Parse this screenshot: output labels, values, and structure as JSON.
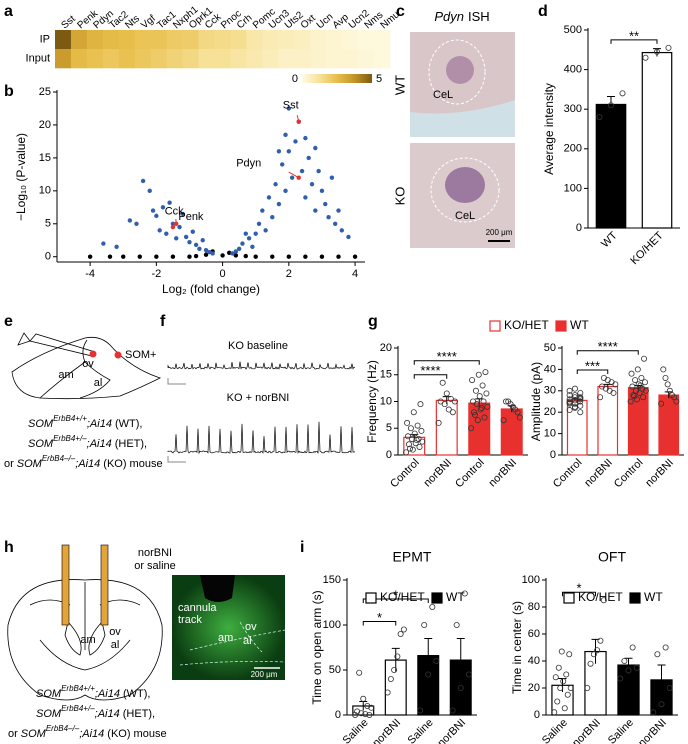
{
  "panel_labels": [
    "a",
    "b",
    "c",
    "d",
    "e",
    "f",
    "g",
    "h",
    "i"
  ],
  "chart_data": [
    {
      "type": "heatmap",
      "rows": [
        "IP",
        "Input"
      ],
      "columns": [
        "Sst",
        "Penk",
        "Pdyn",
        "Tac2",
        "Nts",
        "Vgf",
        "Tac1",
        "Nxph1",
        "Oprk1",
        "Cck",
        "Pnoc",
        "Crh",
        "Pomc",
        "Ucn3",
        "Uts2",
        "Oxt",
        "Ucn",
        "Avp",
        "Ucn2",
        "Nms",
        "Nmu"
      ],
      "values": [
        [
          5,
          3.2,
          2.8,
          2.6,
          2.5,
          2.3,
          2.3,
          2.1,
          2.0,
          1.6,
          1.5,
          1.4,
          1.0,
          0.8,
          0.7,
          0.6,
          0.4,
          0.3,
          0.2,
          0.1,
          0.1
        ],
        [
          3.5,
          2.6,
          2.4,
          2.2,
          2.4,
          2.2,
          2.0,
          1.8,
          1.6,
          1.3,
          1.3,
          1.1,
          0.9,
          0.7,
          0.5,
          0.5,
          0.4,
          0.3,
          0.3,
          0.2,
          0.1
        ]
      ],
      "cmap": [
        "#fffbe3",
        "#f7e29a",
        "#e8be4a",
        "#c39426",
        "#7d5a12"
      ],
      "clim": [
        0,
        5
      ],
      "cticks": [
        0,
        5
      ]
    },
    {
      "type": "scatter",
      "xlabel": "Log₂ (fold change)",
      "ylabel": "−Log₁₀ (P-value)",
      "xlim": [
        -5,
        4.3
      ],
      "xticks": [
        -4,
        -2,
        0,
        2,
        4
      ],
      "ylim": [
        -0.8,
        25
      ],
      "yticks": [
        0,
        5,
        10,
        15,
        20,
        25
      ],
      "series": [
        {
          "color": "#000000",
          "x": [
            -4,
            -3.4,
            -3,
            -2.5,
            -2,
            -1.5,
            -1,
            -0.5,
            -0.3,
            0,
            0.2,
            0.4,
            1,
            1.5,
            2,
            2.5,
            3,
            3.5,
            4,
            -0.8,
            0.7
          ],
          "y": [
            0,
            0,
            0,
            0,
            0,
            0,
            0,
            0.3,
            0.8,
            0.2,
            0.6,
            0.2,
            0,
            0,
            0,
            0,
            0,
            0,
            0,
            0.1,
            0.1
          ]
        },
        {
          "color": "#2f5fad",
          "x": [
            -3.6,
            -3.2,
            -2.8,
            -2.6,
            -2.4,
            -2.2,
            -2.1,
            -2,
            -1.9,
            -1.8,
            -1.7,
            -1.6,
            -1.5,
            -1.4,
            -1.3,
            -1.2,
            -1.1,
            -1,
            -0.9,
            -0.8,
            -0.7,
            -0.6,
            -0.5,
            -0.4,
            0.4,
            0.5,
            0.6,
            0.8,
            0.9,
            1,
            1.1,
            1.2,
            1.3,
            1.4,
            1.5,
            1.6,
            1.7,
            1.8,
            1.9,
            2,
            2.1,
            2.2,
            2.3,
            2.4,
            2.5,
            2.6,
            2.7,
            2.8,
            2.9,
            3,
            3.1,
            3.2,
            3.3,
            3.4,
            3.5,
            3.6,
            3.8,
            2,
            1.9,
            2.5,
            2.8,
            1.7,
            0.7,
            -0.3,
            0.3
          ],
          "y": [
            2,
            1.5,
            5.5,
            5,
            11.5,
            10,
            7,
            6.2,
            4,
            7.5,
            3.5,
            8.2,
            5,
            2.8,
            4.5,
            6.5,
            3,
            2.2,
            3.8,
            1.8,
            1.2,
            2.5,
            1,
            0.7,
            0.8,
            1.2,
            2,
            2.8,
            1.5,
            3.5,
            5,
            7,
            4,
            9,
            6,
            11,
            8,
            14,
            10,
            16,
            12,
            17.5,
            20.5,
            13,
            9,
            15,
            11,
            7,
            13,
            10,
            8,
            6,
            12,
            5,
            7,
            4,
            3,
            22.5,
            18.5,
            18,
            16.5,
            16,
            3.5,
            0.5,
            0.5
          ]
        }
      ],
      "annotations": [
        {
          "text": "Sst",
          "x": 2.3,
          "y": 20.5,
          "color": "#e8312f"
        },
        {
          "text": "Pdyn",
          "x": 2.3,
          "y": 12,
          "color": "#e8312f"
        },
        {
          "text": "Cck",
          "x": -1.4,
          "y": 5,
          "color": "#e8312f"
        },
        {
          "text": "Penk",
          "x": -1.5,
          "y": 4.5,
          "color": "#e8312f"
        }
      ]
    },
    {
      "type": "bar",
      "ylabel": "Average intensity",
      "categories": [
        "WT",
        "KO/HET"
      ],
      "series": [
        {
          "color": [
            "#000000",
            "#ffffff"
          ],
          "edgecolor": "#000000",
          "values": [
            312,
            443
          ],
          "errors": [
            20,
            10
          ],
          "points": [
            [
              280,
              310,
              340
            ],
            [
              430,
              445,
              455
            ]
          ]
        }
      ],
      "ylim": [
        0,
        500
      ],
      "yticks": [
        0,
        100,
        200,
        300,
        400,
        500
      ],
      "annotations": [
        {
          "text": "**",
          "from": 0,
          "to": 1
        }
      ]
    },
    {
      "type": "bar",
      "ylabel": "Frequency (Hz)",
      "categories": [
        "Control",
        "norBNI",
        "Control",
        "norBNI"
      ],
      "series": [
        {
          "name": "KO/HET",
          "color": "#ffffff",
          "edgecolor": "#e8312f",
          "values": [
            3.3,
            10.2,
            null,
            null
          ],
          "errors": [
            0.5,
            0.7,
            null,
            null
          ],
          "points": [
            [
              0.5,
              1,
              1.5,
              2,
              2.2,
              2.5,
              3,
              3,
              3.5,
              4,
              4.5,
              5,
              5.5,
              6,
              8,
              9.5,
              1.2,
              2.8
            ],
            [
              6,
              8,
              8.5,
              9.5,
              10,
              10,
              10.5,
              11.5,
              13.5
            ],
            null,
            null
          ]
        },
        {
          "name": "WT",
          "color": "#e8312f",
          "edgecolor": "#e8312f",
          "values": [
            null,
            null,
            9.7,
            8.6
          ],
          "errors": [
            null,
            null,
            0.8,
            0.6
          ],
          "points": [
            null,
            null,
            [
              5,
              6.5,
              7,
              8,
              8.5,
              9,
              9.5,
              10,
              10,
              11,
              11.5,
              12,
              13,
              14,
              15,
              15.5,
              7.5,
              8.8
            ],
            [
              6.5,
              7,
              8,
              8.5,
              9,
              9.5,
              10,
              10
            ]
          ]
        }
      ],
      "ylim": [
        0,
        20
      ],
      "yticks": [
        0,
        5,
        10,
        15,
        20
      ],
      "annotations": [
        {
          "text": "****",
          "from": 0,
          "to": 1
        },
        {
          "text": "****",
          "from": 0,
          "to": 2
        }
      ]
    },
    {
      "type": "bar",
      "ylabel": "Amplitude (pA)",
      "categories": [
        "Control",
        "norBNI",
        "Control",
        "norBNI"
      ],
      "series": [
        {
          "color": "#ffffff",
          "edgecolor": "#e8312f",
          "values": [
            25.5,
            32,
            null,
            null
          ],
          "errors": [
            0.7,
            1,
            null,
            null
          ],
          "points": [
            [
              21,
              22,
              23,
              24,
              24,
              25,
              25,
              25.5,
              26,
              26,
              27,
              27,
              28,
              28,
              29,
              30,
              22.5,
              26.5,
              24.5,
              31,
              20
            ],
            [
              27,
              29,
              30,
              31,
              32,
              33,
              34,
              35,
              36
            ],
            null,
            null
          ]
        },
        {
          "color": "#e8312f",
          "edgecolor": "#e8312f",
          "values": [
            null,
            null,
            31.5,
            28
          ],
          "errors": [
            null,
            null,
            1,
            1.5
          ],
          "points": [
            null,
            null,
            [
              25,
              26,
              27,
              28,
              29,
              30,
              30,
              31,
              32,
              33,
              34,
              35,
              36,
              38,
              40,
              45,
              27.5,
              32.5
            ],
            [
              24,
              25,
              27,
              28,
              30,
              33,
              36,
              40
            ]
          ]
        }
      ],
      "ylim": [
        0,
        50
      ],
      "yticks": [
        0,
        10,
        20,
        30,
        40,
        50
      ],
      "annotations": [
        {
          "text": "***",
          "from": 0,
          "to": 1
        },
        {
          "text": "****",
          "from": 0,
          "to": 2
        }
      ]
    },
    {
      "type": "bar",
      "title": "EPMT",
      "ylabel": "Time on open arm (s)",
      "categories": [
        "Saline",
        "norBNI",
        "Saline",
        "norBNI"
      ],
      "series": [
        {
          "name": "KO/HET",
          "color": "#ffffff",
          "edgecolor": "#000000",
          "values": [
            10,
            61,
            null,
            null
          ],
          "errors": [
            5,
            13,
            null,
            null
          ],
          "points": [
            [
              0,
              0,
              1,
              2,
              4,
              8,
              10,
              18,
              47
            ],
            [
              25,
              40,
              50,
              65,
              90,
              95
            ],
            null,
            null
          ]
        },
        {
          "name": "WT",
          "color": "#000000",
          "edgecolor": "#000000",
          "values": [
            null,
            null,
            66,
            61
          ],
          "errors": [
            null,
            null,
            19,
            24
          ],
          "points": [
            null,
            null,
            [
              5,
              45,
              60,
              100,
              120
            ],
            [
              5,
              30,
              45,
              100,
              135
            ]
          ]
        }
      ],
      "ylim": [
        0,
        150
      ],
      "yticks": [
        0,
        50,
        100,
        150
      ],
      "annotations": [
        {
          "text": "*",
          "from": 0,
          "to": 1
        },
        {
          "text": "*",
          "from": 0,
          "to": 2
        }
      ]
    },
    {
      "type": "bar",
      "title": "OFT",
      "ylabel": "Time in center (s)",
      "categories": [
        "Saline",
        "norBNI",
        "Saline",
        "norBNI"
      ],
      "series": [
        {
          "name": "KO/HET",
          "color": "#ffffff",
          "edgecolor": "#000000",
          "values": [
            22,
            47,
            null,
            null
          ],
          "errors": [
            5,
            9,
            null,
            null
          ],
          "points": [
            [
              2,
              5,
              10,
              15,
              20,
              20,
              25,
              28,
              30,
              35,
              45,
              47
            ],
            [
              20,
              38,
              45,
              48,
              55,
              85
            ],
            null,
            null
          ]
        },
        {
          "name": "WT",
          "color": "#000000",
          "edgecolor": "#000000",
          "values": [
            null,
            null,
            37,
            26
          ],
          "errors": [
            null,
            null,
            5,
            11
          ],
          "points": [
            null,
            null,
            [
              27,
              33,
              35,
              40,
              50
            ],
            [
              2,
              8,
              20,
              45,
              50
            ]
          ]
        }
      ],
      "ylim": [
        0,
        100
      ],
      "yticks": [
        0,
        20,
        40,
        60,
        80,
        100
      ],
      "annotations": [
        {
          "text": "*",
          "from": 0,
          "to": 1
        }
      ]
    }
  ],
  "ish_image": {
    "gene": "Pdyn",
    "method": "ISH",
    "rows": [
      "WT",
      "KO"
    ],
    "region": "CeL",
    "scale": "200 μm"
  },
  "schematic_e": {
    "labels": [
      "ov",
      "am",
      "al"
    ],
    "legend": "SOM+",
    "genotypes": [
      {
        "gene": "SOM",
        "allele": "ErbB4+/+",
        "reporter": ";Ai14",
        "tag": "(WT),"
      },
      {
        "gene": "SOM",
        "allele": "ErbB4+/–",
        "reporter": ";Ai14",
        "tag": "(HET),"
      },
      {
        "prefix": "or",
        "gene": "SOM",
        "allele": "ErbB4–/–",
        "reporter": ";Ai14",
        "tag": "(KO) mouse"
      }
    ]
  },
  "traces_f": {
    "labels": [
      "KO baseline",
      "KO + norBNI"
    ]
  },
  "schematic_h": {
    "injection": [
      "norBNI",
      "or saline"
    ],
    "labels": [
      "am",
      "ov",
      "al"
    ],
    "image_labels": {
      "track": [
        "cannula",
        "track"
      ],
      "regions": [
        "am",
        "ov",
        "al"
      ],
      "scale": "200 μm"
    },
    "genotypes": [
      {
        "gene": "SOM",
        "allele": "ErbB4+/+",
        "reporter": ";Ai14",
        "tag": "(WT),"
      },
      {
        "gene": "SOM",
        "allele": "ErbB4+/–",
        "reporter": ";Ai14",
        "tag": "(HET),"
      },
      {
        "prefix": "or",
        "gene": "SOM",
        "allele": "ErbB4–/–",
        "reporter": ";Ai14",
        "tag": "(KO) mouse"
      }
    ]
  }
}
